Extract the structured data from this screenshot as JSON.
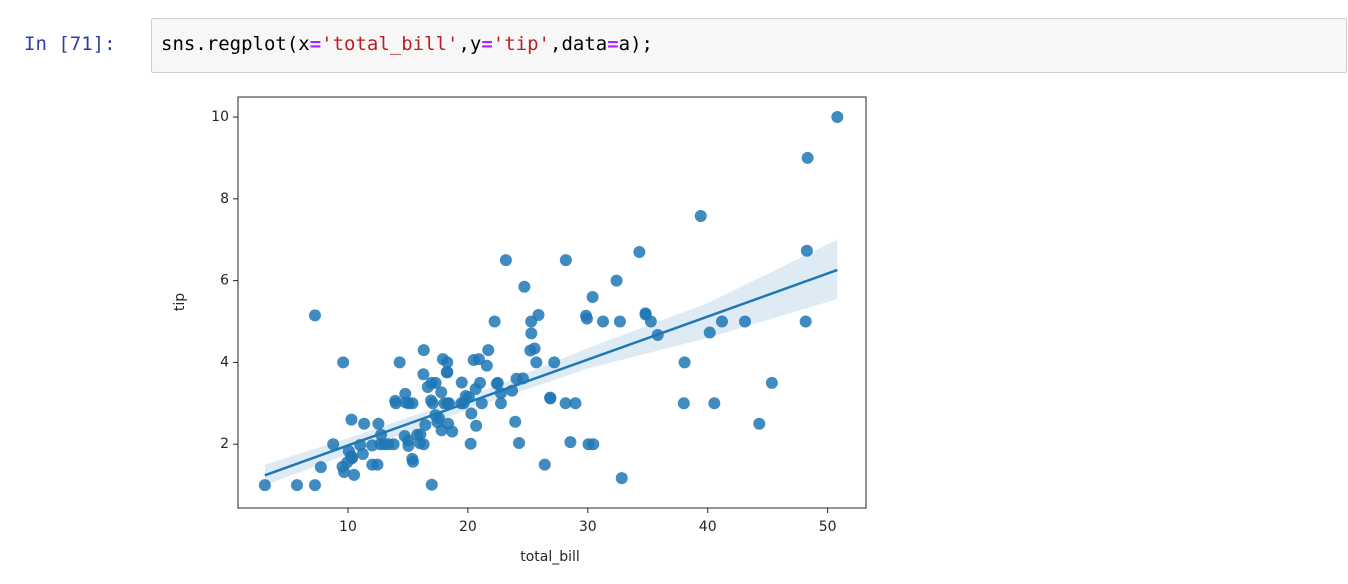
{
  "prompt": "In [71]:",
  "code": [
    "sns.regplot(x",
    "=",
    "'total_bill'",
    ",y",
    "=",
    "'tip'",
    ",data",
    "=",
    "a);"
  ],
  "chart_data": {
    "type": "scatter",
    "x_label": "total_bill",
    "y_label": "tip",
    "xlim": [
      0.83,
      53.2
    ],
    "ylim": [
      0.44,
      10.49
    ],
    "xticks": [
      10,
      20,
      30,
      40,
      50
    ],
    "yticks": [
      2,
      4,
      6,
      8,
      10
    ],
    "color": "#1f77b4",
    "x": [
      16.99,
      10.34,
      21.01,
      23.68,
      24.59,
      25.29,
      8.77,
      26.88,
      15.04,
      14.78,
      10.27,
      35.26,
      15.42,
      18.43,
      14.83,
      21.58,
      10.33,
      16.29,
      16.97,
      20.65,
      17.92,
      20.29,
      15.77,
      39.42,
      19.82,
      17.81,
      13.37,
      12.69,
      21.7,
      19.65,
      9.55,
      18.35,
      15.06,
      20.69,
      17.78,
      24.06,
      16.31,
      16.93,
      18.69,
      31.27,
      16.04,
      17.46,
      13.94,
      9.68,
      30.4,
      18.29,
      22.23,
      32.4,
      28.55,
      18.04,
      12.54,
      10.29,
      34.81,
      9.94,
      25.56,
      19.49,
      38.01,
      26.41,
      11.24,
      48.27,
      13.81,
      11.02,
      18.29,
      17.59,
      20.08,
      16.45,
      3.07,
      20.23,
      15.01,
      12.02,
      17.07,
      26.86,
      25.28,
      14.73,
      10.51,
      27.2,
      22.76,
      17.29,
      19.44,
      16.66,
      10.07,
      32.68,
      15.98,
      34.83,
      13.03,
      18.28,
      24.71,
      21.16,
      28.97,
      22.49,
      5.75,
      16.32,
      22.75,
      40.17,
      12.03,
      12.46,
      11.35,
      15.38,
      44.3,
      22.42,
      20.92,
      15.36,
      20.49,
      25.21,
      18.24,
      14.31,
      14,
      7.25,
      38.07,
      23.95,
      25.71,
      17.31,
      29.93,
      50.81,
      48.33,
      48.17,
      45.35,
      43.11,
      32.83,
      41.19,
      40.55,
      9.6,
      7.74,
      30.46,
      23.17,
      28.15,
      24.27,
      12.76,
      30.06,
      25.89,
      7.25,
      34.3,
      28.17,
      29.85,
      35.83
    ],
    "values": [
      1.01,
      1.66,
      3.5,
      3.31,
      3.61,
      4.71,
      2,
      3.12,
      1.96,
      3.23,
      1.71,
      5,
      1.57,
      3,
      3.02,
      3.92,
      1.67,
      3.71,
      3.5,
      3.35,
      4.08,
      2.75,
      2.23,
      7.58,
      3.18,
      2.34,
      2,
      2,
      4.3,
      3,
      1.45,
      2.5,
      3,
      2.45,
      3.27,
      3.6,
      2,
      3.07,
      2.31,
      5,
      2.24,
      2.54,
      3.06,
      1.32,
      5.6,
      3,
      5,
      6,
      2.05,
      3,
      2.5,
      2.6,
      5.2,
      1.56,
      4.34,
      3.51,
      3,
      1.5,
      1.76,
      6.73,
      2,
      1.98,
      3.76,
      2.64,
      3.15,
      2.47,
      1,
      2.01,
      2.09,
      1.97,
      3,
      3.14,
      5,
      2.2,
      1.25,
      4,
      3,
      2.71,
      3,
      3.4,
      1.83,
      5,
      2.03,
      5.17,
      2,
      4,
      5.85,
      3,
      3,
      3.5,
      1,
      4.3,
      3.25,
      4.73,
      1.5,
      1.5,
      2.5,
      3,
      2.5,
      3.48,
      4.08,
      1.64,
      4.06,
      4.29,
      3.76,
      4,
      3,
      1,
      4,
      2.55,
      4,
      3.5,
      5.07,
      10,
      9,
      5,
      3.5,
      5,
      1.17,
      5,
      3,
      4,
      1.44,
      2,
      6.5,
      3,
      2.03,
      2.23,
      2,
      5.16,
      5.15,
      6.7,
      6.5,
      5.14,
      4.67
    ],
    "regression": {
      "x": [
        3.07,
        10,
        20,
        30,
        40,
        50.81
      ],
      "y": [
        1.24,
        1.97,
        3.02,
        4.07,
        5.12,
        6.26
      ],
      "ci_lower": [
        1.0,
        1.75,
        2.85,
        3.85,
        4.6,
        5.55
      ],
      "ci_upper": [
        1.5,
        2.15,
        3.15,
        4.35,
        5.45,
        7.0
      ]
    }
  }
}
